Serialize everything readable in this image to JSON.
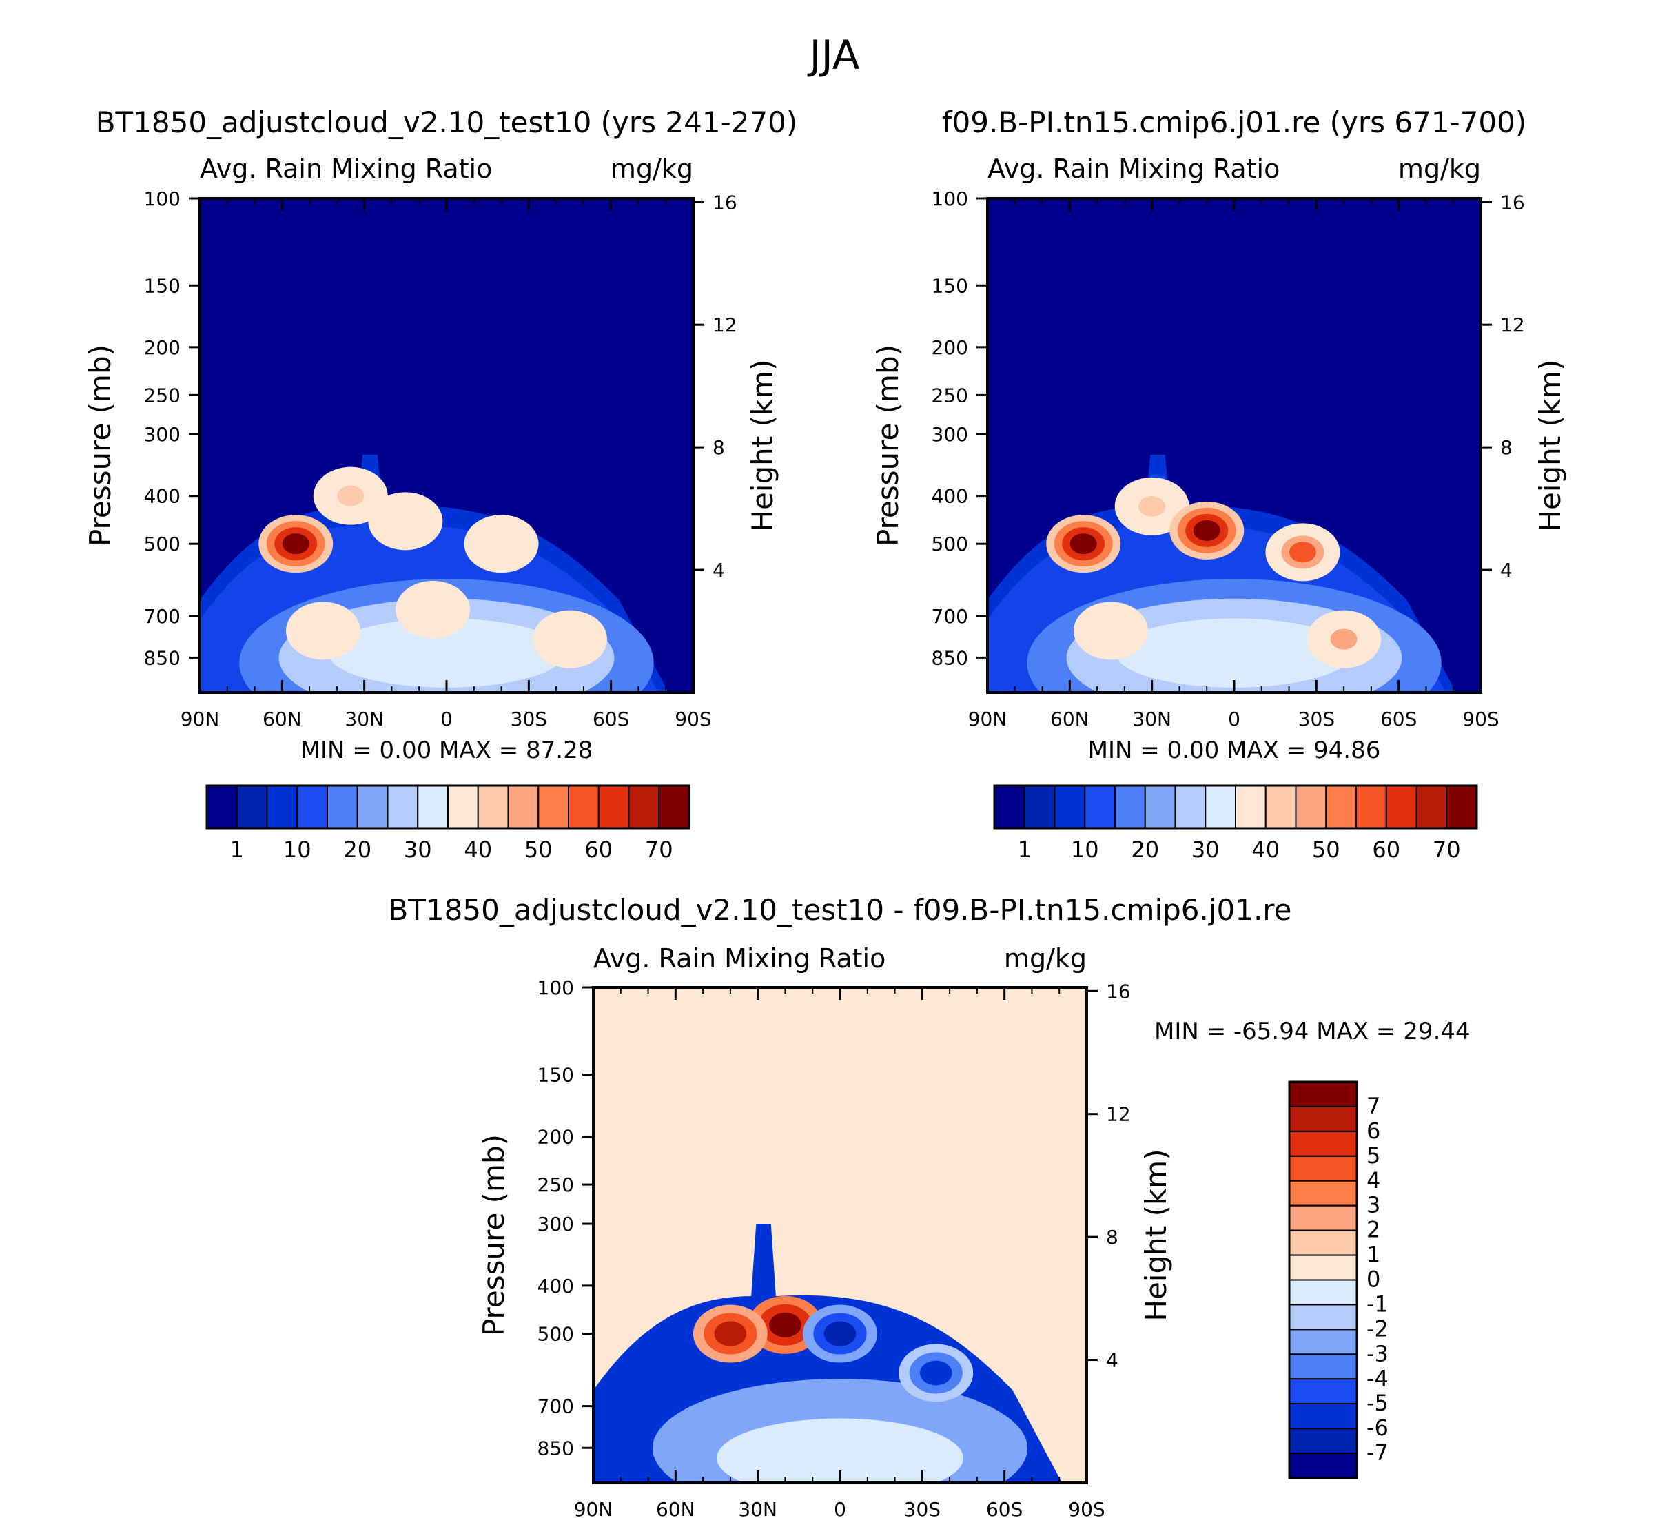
{
  "figure": {
    "title": "JJA"
  },
  "colors": {
    "abs_scale": [
      "#00008c",
      "#0022b0",
      "#0033d6",
      "#1a4cf2",
      "#4d7ff7",
      "#80a6fa",
      "#b3ccfc",
      "#d9ebfd",
      "#fde8d6",
      "#fdc9ab",
      "#fca781",
      "#fc7f4a",
      "#f55425",
      "#e0300f",
      "#b81c08",
      "#800000"
    ],
    "diff_scale": [
      "#00008c",
      "#0022b0",
      "#0033d6",
      "#1a4cf2",
      "#4d7ff7",
      "#80a6fa",
      "#b3ccfc",
      "#d9ebfd",
      "#fde8d6",
      "#fdc9ab",
      "#fca781",
      "#fc7f4a",
      "#f55425",
      "#e0300f",
      "#b81c08",
      "#800000"
    ]
  },
  "chart_data": [
    {
      "type": "heatmap",
      "title": "BT1850_adjustcloud_v2.10_test10 (yrs 241-270)",
      "subtitle_left": "Avg. Rain Mixing Ratio",
      "subtitle_right": "mg/kg",
      "xlabel": "",
      "ylabel": "Pressure (mb)",
      "ylabel_right": "Height (km)",
      "x_tick_labels": [
        "90N",
        "60N",
        "30N",
        "0",
        "30S",
        "60S",
        "90S"
      ],
      "x_ticks": [
        90,
        60,
        30,
        0,
        -30,
        -60,
        -90
      ],
      "y_ticks": [
        100,
        150,
        200,
        250,
        300,
        400,
        500,
        700,
        850
      ],
      "y_right_ticks": [
        16,
        12,
        8,
        4
      ],
      "ylim": [
        100,
        1000
      ],
      "stats": {
        "min_label": "MIN =",
        "min_value": "0.00",
        "max_label": "MAX =",
        "max_value": "87.28"
      },
      "colorbar_labels": [
        "1",
        "10",
        "20",
        "30",
        "40",
        "50",
        "60",
        "70"
      ],
      "features": [
        {
          "lat": 55,
          "p": 500,
          "value": 87
        },
        {
          "lat": 35,
          "p": 400,
          "value": 55
        },
        {
          "lat": 15,
          "p": 450,
          "value": 45
        },
        {
          "lat": -20,
          "p": 500,
          "value": 45
        },
        {
          "lat": 45,
          "p": 750,
          "value": 38
        },
        {
          "lat": -45,
          "p": 780,
          "value": 48
        },
        {
          "lat": 5,
          "p": 680,
          "value": 22
        }
      ]
    },
    {
      "type": "heatmap",
      "title": "f09.B-PI.tn15.cmip6.j01.re (yrs 671-700)",
      "subtitle_left": "Avg. Rain Mixing Ratio",
      "subtitle_right": "mg/kg",
      "xlabel": "",
      "ylabel": "Pressure (mb)",
      "ylabel_right": "Height (km)",
      "x_tick_labels": [
        "90N",
        "60N",
        "30N",
        "0",
        "30S",
        "60S",
        "90S"
      ],
      "x_ticks": [
        90,
        60,
        30,
        0,
        -30,
        -60,
        -90
      ],
      "y_ticks": [
        100,
        150,
        200,
        250,
        300,
        400,
        500,
        700,
        850
      ],
      "y_right_ticks": [
        16,
        12,
        8,
        4
      ],
      "ylim": [
        100,
        1000
      ],
      "stats": {
        "min_label": "MIN =",
        "min_value": "0.00",
        "max_label": "MAX =",
        "max_value": "94.86"
      },
      "colorbar_labels": [
        "1",
        "10",
        "20",
        "30",
        "40",
        "50",
        "60",
        "70"
      ],
      "features": [
        {
          "lat": 55,
          "p": 500,
          "value": 92
        },
        {
          "lat": 30,
          "p": 420,
          "value": 50
        },
        {
          "lat": 10,
          "p": 470,
          "value": 85
        },
        {
          "lat": -25,
          "p": 520,
          "value": 70
        },
        {
          "lat": 45,
          "p": 750,
          "value": 40
        },
        {
          "lat": -40,
          "p": 780,
          "value": 60
        }
      ]
    },
    {
      "type": "heatmap",
      "title": "BT1850_adjustcloud_v2.10_test10 - f09.B-PI.tn15.cmip6.j01.re",
      "subtitle_left": "Avg. Rain Mixing Ratio",
      "subtitle_right": "mg/kg",
      "xlabel": "",
      "ylabel": "Pressure (mb)",
      "ylabel_right": "Height (km)",
      "x_tick_labels": [
        "90N",
        "60N",
        "30N",
        "0",
        "30S",
        "60S",
        "90S"
      ],
      "x_ticks": [
        90,
        60,
        30,
        0,
        -30,
        -60,
        -90
      ],
      "y_ticks": [
        100,
        150,
        200,
        250,
        300,
        400,
        500,
        700,
        850
      ],
      "y_right_ticks": [
        16,
        12,
        8,
        4
      ],
      "ylim": [
        100,
        1000
      ],
      "stats": {
        "min_label": "MIN =",
        "min_value": "-65.94",
        "max_label": "MAX =",
        "max_value": "29.44"
      },
      "colorbar_labels": [
        "7",
        "6",
        "5",
        "4",
        "3",
        "2",
        "1",
        "0",
        "-1",
        "-2",
        "-3",
        "-4",
        "-5",
        "-6",
        "-7"
      ],
      "features": [
        {
          "lat": 20,
          "p": 480,
          "value": 7
        },
        {
          "lat": 40,
          "p": 500,
          "value": 6
        },
        {
          "lat": 0,
          "p": 500,
          "value": -7
        },
        {
          "lat": -35,
          "p": 600,
          "value": -6
        }
      ]
    }
  ]
}
